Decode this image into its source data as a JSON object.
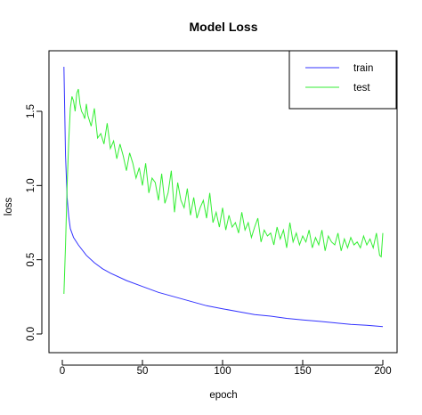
{
  "chart_data": {
    "type": "line",
    "title": "Model Loss",
    "xlabel": "epoch",
    "ylabel": "loss",
    "xlim": [
      0,
      200
    ],
    "ylim": [
      0,
      1.8
    ],
    "xticks": [
      0,
      50,
      100,
      150,
      200
    ],
    "yticks": [
      0.0,
      0.5,
      1.0,
      1.5
    ],
    "xtick_labels": [
      "0",
      "50",
      "100",
      "150",
      "200"
    ],
    "ytick_labels": [
      "0.0",
      "0.5",
      "1.0",
      "1.5"
    ],
    "grid": false,
    "legend_position": "top-right",
    "legend": [
      {
        "label": "train",
        "color": "#3333ff"
      },
      {
        "label": "test",
        "color": "#33ee33"
      }
    ],
    "series": [
      {
        "name": "train",
        "color": "#3333ff",
        "x": [
          1,
          2,
          3,
          4,
          5,
          7,
          10,
          15,
          20,
          25,
          30,
          40,
          50,
          60,
          70,
          80,
          90,
          100,
          110,
          120,
          130,
          140,
          150,
          160,
          170,
          180,
          190,
          200
        ],
        "y": [
          1.8,
          1.2,
          0.92,
          0.79,
          0.71,
          0.65,
          0.6,
          0.53,
          0.48,
          0.44,
          0.41,
          0.36,
          0.32,
          0.28,
          0.25,
          0.22,
          0.19,
          0.17,
          0.15,
          0.13,
          0.12,
          0.105,
          0.095,
          0.085,
          0.075,
          0.065,
          0.058,
          0.05
        ]
      },
      {
        "name": "test",
        "color": "#33ee33",
        "x": [
          1,
          2,
          3,
          4,
          5,
          6,
          7,
          8,
          9,
          10,
          11,
          12,
          13,
          14,
          15,
          16,
          18,
          20,
          22,
          24,
          26,
          28,
          30,
          32,
          34,
          36,
          38,
          40,
          42,
          44,
          46,
          48,
          50,
          52,
          54,
          56,
          58,
          60,
          62,
          64,
          66,
          68,
          70,
          72,
          74,
          76,
          78,
          80,
          82,
          84,
          86,
          88,
          90,
          92,
          94,
          96,
          98,
          100,
          102,
          104,
          106,
          108,
          110,
          112,
          114,
          116,
          118,
          120,
          122,
          124,
          126,
          128,
          130,
          132,
          134,
          136,
          138,
          140,
          142,
          144,
          146,
          148,
          150,
          152,
          154,
          156,
          158,
          160,
          162,
          164,
          166,
          168,
          170,
          172,
          174,
          176,
          178,
          180,
          182,
          184,
          186,
          188,
          190,
          192,
          194,
          196,
          198,
          199,
          200
        ],
        "y": [
          0.27,
          0.6,
          1.0,
          1.3,
          1.52,
          1.6,
          1.57,
          1.5,
          1.62,
          1.65,
          1.55,
          1.5,
          1.48,
          1.45,
          1.55,
          1.47,
          1.4,
          1.52,
          1.32,
          1.35,
          1.28,
          1.42,
          1.25,
          1.3,
          1.18,
          1.28,
          1.2,
          1.1,
          1.22,
          1.15,
          1.05,
          1.12,
          1.0,
          1.15,
          0.95,
          1.05,
          1.02,
          0.9,
          1.08,
          0.88,
          0.95,
          1.1,
          0.82,
          1.02,
          0.9,
          0.85,
          0.98,
          0.8,
          0.92,
          0.78,
          0.85,
          0.9,
          0.78,
          0.95,
          0.75,
          0.82,
          0.72,
          0.85,
          0.7,
          0.8,
          0.72,
          0.75,
          0.68,
          0.82,
          0.7,
          0.75,
          0.65,
          0.72,
          0.78,
          0.62,
          0.7,
          0.66,
          0.68,
          0.6,
          0.72,
          0.64,
          0.7,
          0.58,
          0.75,
          0.62,
          0.68,
          0.6,
          0.66,
          0.62,
          0.7,
          0.58,
          0.65,
          0.6,
          0.7,
          0.56,
          0.66,
          0.62,
          0.6,
          0.68,
          0.56,
          0.64,
          0.58,
          0.65,
          0.6,
          0.62,
          0.58,
          0.66,
          0.6,
          0.64,
          0.58,
          0.68,
          0.53,
          0.52,
          0.68
        ]
      }
    ]
  }
}
